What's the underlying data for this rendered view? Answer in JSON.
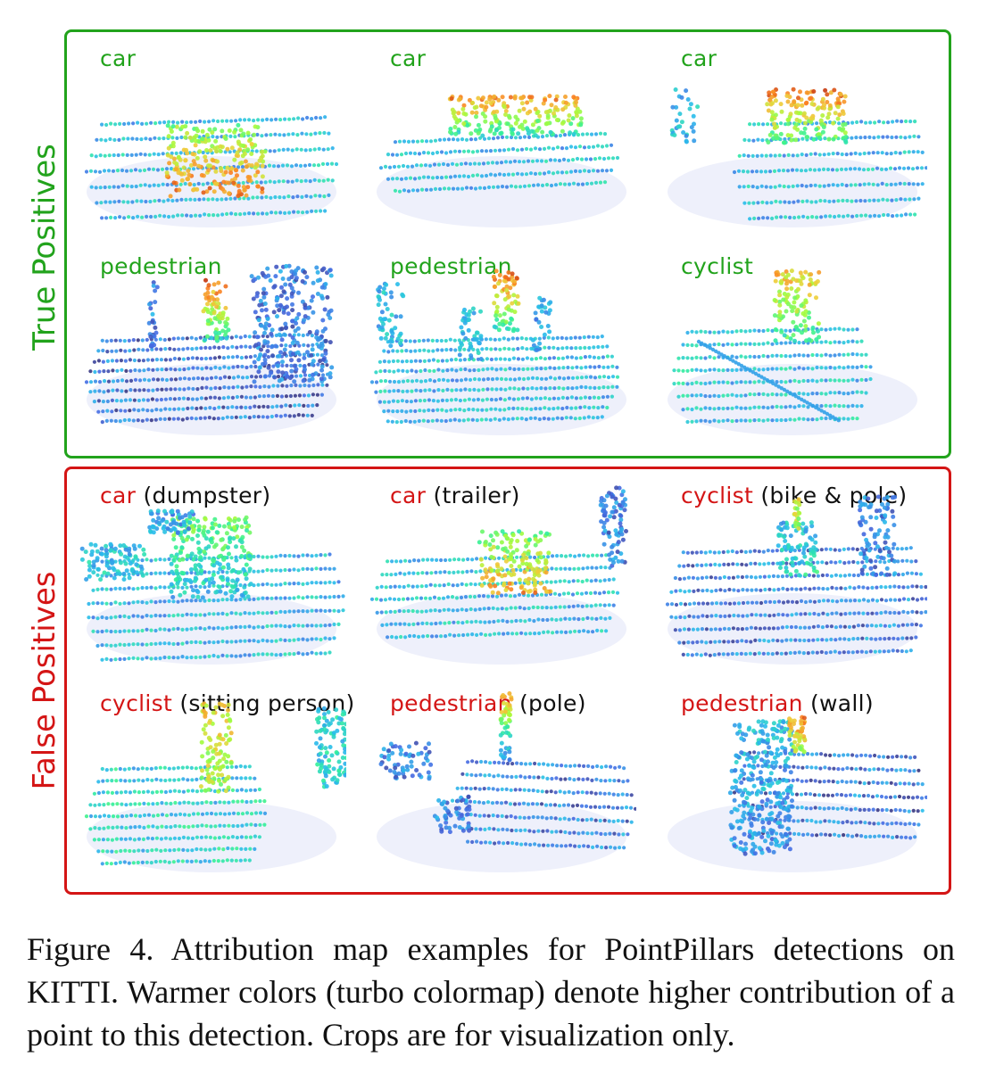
{
  "true_positives": {
    "label": "True Positives",
    "color": "#22a31c",
    "panels": [
      {
        "cls": "car",
        "note": ""
      },
      {
        "cls": "car",
        "note": ""
      },
      {
        "cls": "car",
        "note": ""
      },
      {
        "cls": "pedestrian",
        "note": ""
      },
      {
        "cls": "pedestrian",
        "note": ""
      },
      {
        "cls": "cyclist",
        "note": ""
      }
    ]
  },
  "false_positives": {
    "label": "False Positives",
    "color": "#d41515",
    "panels": [
      {
        "cls": "car",
        "note": "(dumpster)"
      },
      {
        "cls": "car",
        "note": "(trailer)"
      },
      {
        "cls": "cyclist",
        "note": "(bike & pole)"
      },
      {
        "cls": "cyclist",
        "note": "(sitting person)"
      },
      {
        "cls": "pedestrian",
        "note": "(pole)"
      },
      {
        "cls": "pedestrian",
        "note": "(wall)"
      }
    ]
  },
  "colormap": "turbo",
  "caption": "Figure 4. Attribution map examples for PointPillars detections on KITTI. Warmer colors (turbo colormap) denote higher contribution of a point to this detection. Crops are for visualization only."
}
